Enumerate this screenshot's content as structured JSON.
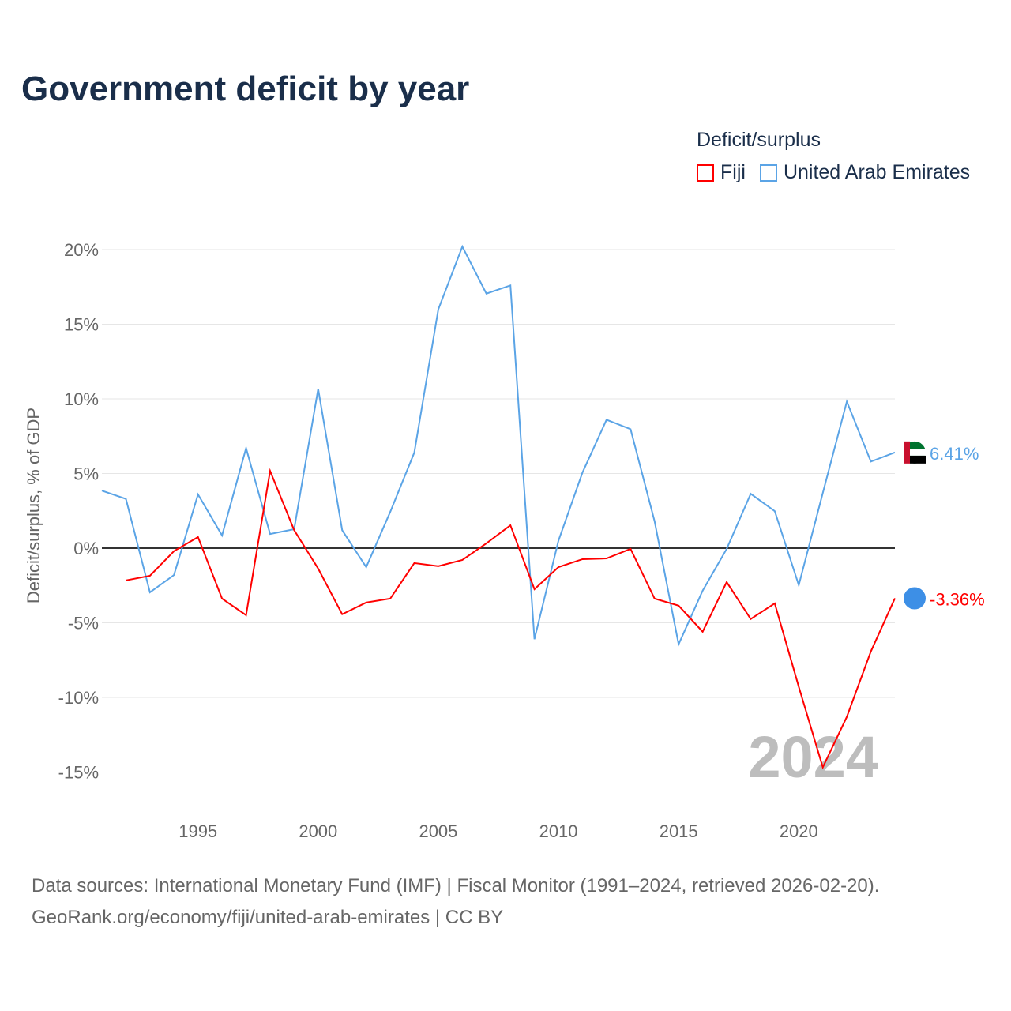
{
  "title": "Government deficit by year",
  "legend": {
    "title": "Deficit/surplus",
    "items": [
      "Fiji",
      "United Arab Emirates"
    ]
  },
  "footer": {
    "line1": "Data sources: International Monetary Fund (IMF) | Fiscal Monitor (1991–2024, retrieved 2026-02-20).",
    "line2": "GeoRank.org/economy/fiji/united-arab-emirates | CC BY"
  },
  "chart_data": {
    "type": "line",
    "title": "Government deficit by year",
    "ylabel": "Deficit/surplus, % of GDP",
    "xlabel": "",
    "year_watermark": "2024",
    "ylim": [
      -15,
      20
    ],
    "xlim": [
      1991,
      2024
    ],
    "yticks": [
      20,
      15,
      10,
      5,
      0,
      -5,
      -10,
      -15
    ],
    "ytick_labels": [
      "20%",
      "15%",
      "10%",
      "5%",
      "0%",
      "-5%",
      "-10%",
      "-15%"
    ],
    "xticks": [
      1995,
      2000,
      2005,
      2010,
      2015,
      2020
    ],
    "xtick_labels": [
      "1995",
      "2000",
      "2005",
      "2010",
      "2015",
      "2020"
    ],
    "series": [
      {
        "name": "United Arab Emirates",
        "color": "#5ba4e6",
        "end_label": "6.41%",
        "start": 1991,
        "values": [
          3.85,
          3.3,
          -2.96,
          -1.8,
          3.6,
          0.85,
          6.7,
          0.95,
          1.27,
          10.67,
          1.2,
          -1.27,
          2.43,
          6.4,
          16.0,
          20.2,
          17.05,
          17.6,
          -6.1,
          0.5,
          5.07,
          8.6,
          7.97,
          1.8,
          -6.44,
          -2.85,
          -0.05,
          3.64,
          2.48,
          -2.48,
          3.7,
          9.82,
          5.8,
          6.41
        ]
      },
      {
        "name": "Fiji",
        "color": "#ff0000",
        "end_label": "-3.36%",
        "start": 1992,
        "values": [
          -2.16,
          -1.85,
          -0.2,
          0.74,
          -3.38,
          -4.49,
          5.17,
          1.21,
          -1.37,
          -4.43,
          -3.64,
          -3.38,
          -1.0,
          -1.21,
          -0.79,
          0.32,
          1.53,
          -2.75,
          -1.27,
          -0.74,
          -0.69,
          -0.05,
          -3.38,
          -3.85,
          -5.6,
          -2.27,
          -4.75,
          -3.7,
          -9.29,
          -14.68,
          -11.3,
          -6.92,
          -3.36
        ]
      }
    ]
  }
}
